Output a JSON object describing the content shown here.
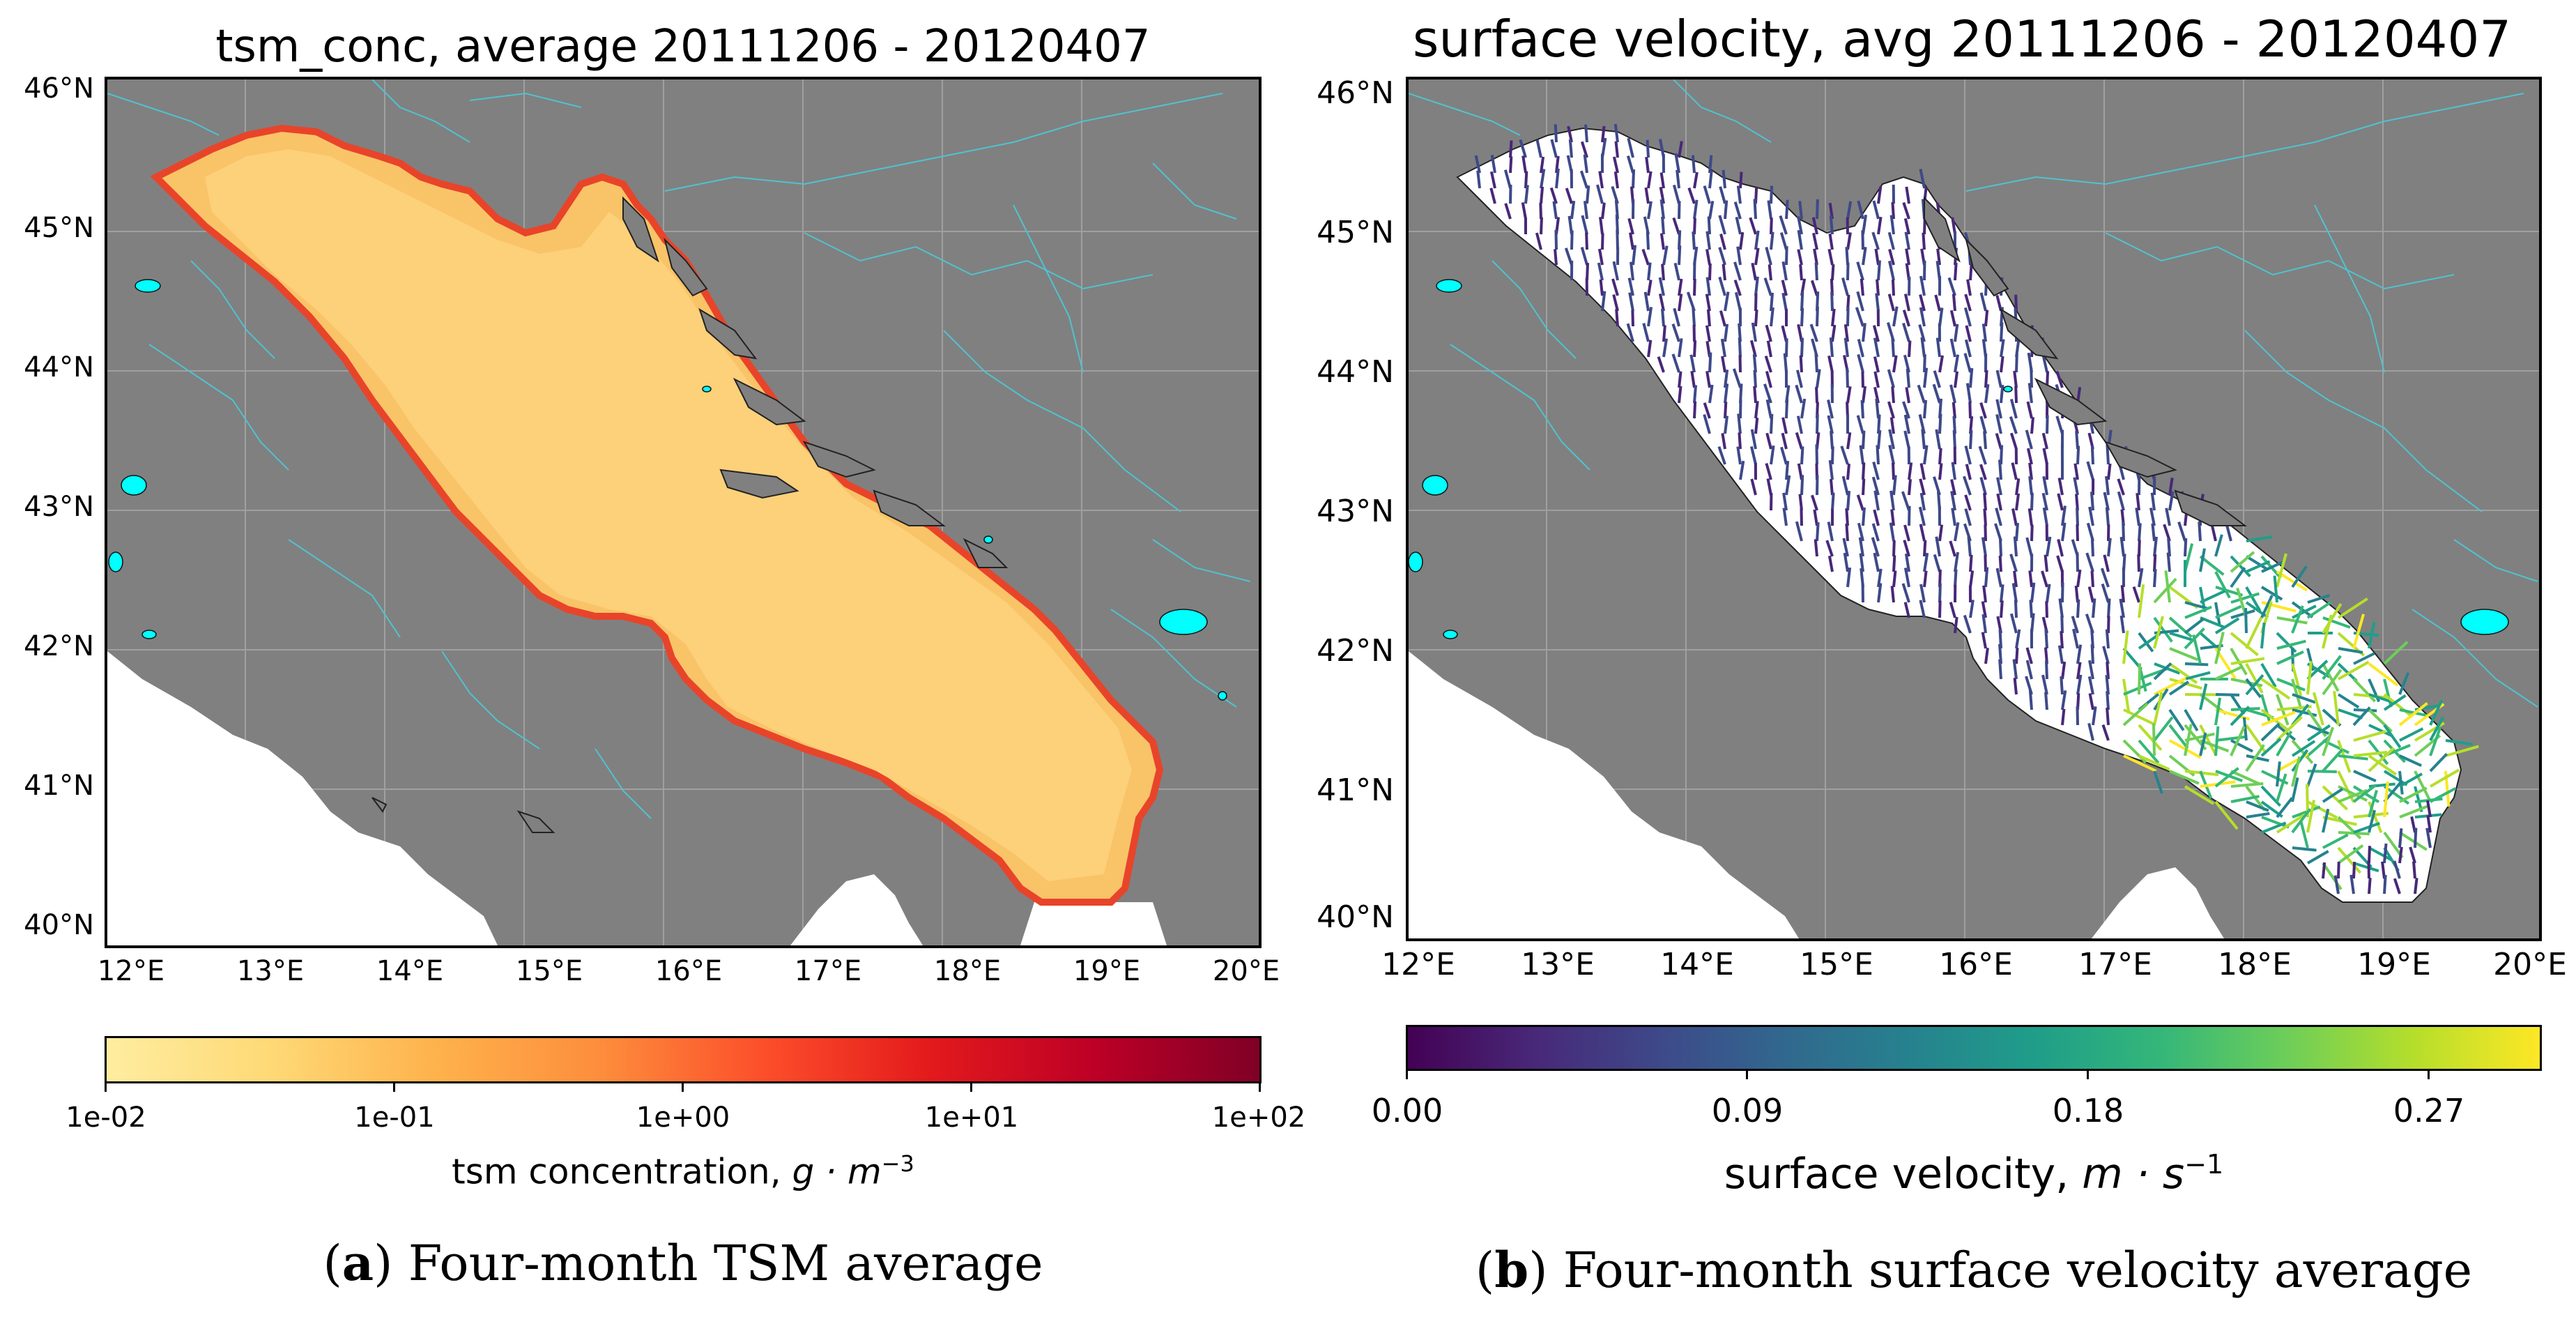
{
  "panel_a": {
    "title": "tsm_conc, average 20111206 - 20120407",
    "lat_labels": [
      "46°N",
      "45°N",
      "44°N",
      "43°N",
      "42°N",
      "41°N",
      "40°N"
    ],
    "lon_labels": [
      "12°E",
      "13°E",
      "14°E",
      "15°E",
      "16°E",
      "17°E",
      "18°E",
      "19°E",
      "20°E"
    ],
    "colorbar": {
      "scale": "log",
      "tick_labels": [
        "1e-02",
        "1e-01",
        "1e+00",
        "1e+01",
        "1e+02"
      ],
      "label": "tsm concentration, ",
      "label_units": "g · m",
      "label_exp": "−3",
      "colors": [
        "#ffeda0",
        "#fed976",
        "#feb24c",
        "#fd8d3c",
        "#fc4e2a",
        "#e31a1c",
        "#bd0026",
        "#800026"
      ]
    },
    "caption_letter": "a",
    "caption_text": " Four-month TSM average"
  },
  "panel_b": {
    "title": "surface velocity, avg 20111206 - 20120407",
    "lat_labels": [
      "46°N",
      "45°N",
      "44°N",
      "43°N",
      "42°N",
      "41°N",
      "40°N"
    ],
    "lon_labels": [
      "12°E",
      "13°E",
      "14°E",
      "15°E",
      "16°E",
      "17°E",
      "18°E",
      "19°E",
      "20°E"
    ],
    "colorbar": {
      "range": [
        0.0,
        0.3
      ],
      "tick_labels": [
        "0.00",
        "0.09",
        "0.18",
        "0.27"
      ],
      "label": "surface velocity, ",
      "label_units": "m · s",
      "label_exp": "−1",
      "colors": [
        "#440154",
        "#482878",
        "#3e4989",
        "#31688e",
        "#26828e",
        "#1f9e89",
        "#35b779",
        "#6ece58",
        "#b5de2b",
        "#fde725"
      ]
    },
    "caption_letter": "b",
    "caption_text": " Four-month surface velocity average"
  },
  "map_colors": {
    "land": "#808080",
    "sea_white": "#ffffff",
    "lakes": "#00ffff",
    "rivers": "#4fc3d0",
    "tsm_low": "#fed27a",
    "tsm_coast": "#f03b20"
  }
}
